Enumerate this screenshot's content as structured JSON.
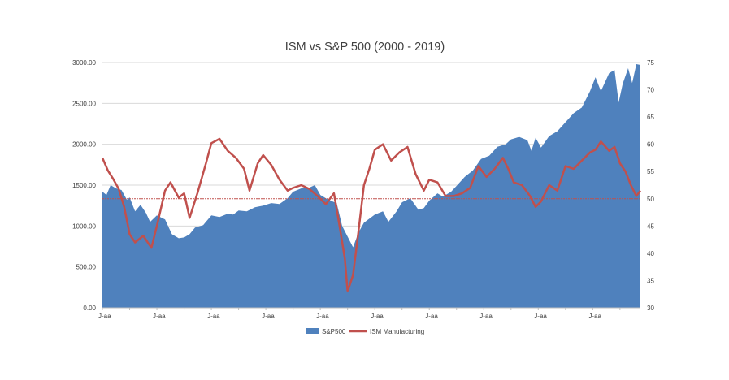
{
  "chart_data": {
    "type": "area",
    "title": "ISM vs S&P 500 (2000 - 2019)",
    "xlabel": "",
    "ylabel": "",
    "y2label": "",
    "grid": true,
    "legend_position": "bottom",
    "y_left": {
      "range": [
        0,
        3000
      ],
      "ticks": [
        "0.00",
        "500.00",
        "1000.00",
        "1500.00",
        "2000.00",
        "2500.00",
        "3000.00"
      ]
    },
    "y_right": {
      "range": [
        30,
        75
      ],
      "ticks": [
        "30",
        "35",
        "40",
        "45",
        "50",
        "55",
        "60",
        "65",
        "70",
        "75"
      ]
    },
    "x_range": [
      2000.0,
      2019.75
    ],
    "x_tick_label": "J-aa",
    "x_tick_years": [
      2000,
      2001,
      2002,
      2003,
      2004,
      2005,
      2006,
      2007,
      2008,
      2009,
      2010,
      2011,
      2012,
      2013,
      2014,
      2015,
      2016,
      2017,
      2018,
      2019
    ],
    "reference_line": {
      "axis": "right",
      "value": 50,
      "color": "#c0504d",
      "style": "dashed"
    },
    "series": [
      {
        "name": "S&P500",
        "type": "area",
        "axis": "left",
        "color": "#4f81bd",
        "x": [
          2000.0,
          2000.15,
          2000.3,
          2000.5,
          2000.7,
          2000.9,
          2001.0,
          2001.2,
          2001.4,
          2001.6,
          2001.75,
          2002.0,
          2002.3,
          2002.55,
          2002.8,
          2003.0,
          2003.2,
          2003.4,
          2003.7,
          2004.0,
          2004.3,
          2004.6,
          2004.8,
          2005.0,
          2005.3,
          2005.6,
          2005.9,
          2006.2,
          2006.5,
          2006.8,
          2007.0,
          2007.3,
          2007.6,
          2007.8,
          2008.0,
          2008.3,
          2008.6,
          2008.8,
          2009.0,
          2009.2,
          2009.4,
          2009.6,
          2009.8,
          2010.0,
          2010.3,
          2010.5,
          2010.8,
          2011.0,
          2011.3,
          2011.6,
          2011.8,
          2012.0,
          2012.3,
          2012.5,
          2012.8,
          2013.0,
          2013.3,
          2013.6,
          2013.9,
          2014.2,
          2014.5,
          2014.8,
          2015.0,
          2015.3,
          2015.6,
          2015.75,
          2015.9,
          2016.1,
          2016.4,
          2016.7,
          2017.0,
          2017.3,
          2017.6,
          2017.9,
          2018.1,
          2018.3,
          2018.6,
          2018.8,
          2018.95,
          2019.1,
          2019.3,
          2019.45,
          2019.6,
          2019.75
        ],
        "values": [
          1420,
          1380,
          1500,
          1460,
          1440,
          1320,
          1350,
          1180,
          1260,
          1160,
          1050,
          1130,
          1080,
          900,
          850,
          860,
          900,
          980,
          1010,
          1130,
          1110,
          1150,
          1140,
          1190,
          1180,
          1230,
          1250,
          1280,
          1270,
          1340,
          1420,
          1460,
          1470,
          1500,
          1380,
          1320,
          1280,
          1000,
          870,
          740,
          920,
          1040,
          1090,
          1140,
          1180,
          1050,
          1180,
          1290,
          1340,
          1200,
          1220,
          1310,
          1400,
          1360,
          1420,
          1490,
          1600,
          1680,
          1820,
          1860,
          1970,
          2000,
          2060,
          2090,
          2050,
          1920,
          2080,
          1960,
          2100,
          2160,
          2270,
          2380,
          2450,
          2650,
          2820,
          2650,
          2870,
          2910,
          2510,
          2740,
          2930,
          2750,
          2980,
          2970
        ]
      },
      {
        "name": "ISM Manufacturing",
        "type": "line",
        "axis": "right",
        "color": "#c0504d",
        "x": [
          2000.0,
          2000.2,
          2000.4,
          2000.6,
          2000.8,
          2001.0,
          2001.2,
          2001.5,
          2001.8,
          2002.0,
          2002.3,
          2002.5,
          2002.8,
          2003.0,
          2003.2,
          2003.5,
          2003.8,
          2004.0,
          2004.3,
          2004.6,
          2004.9,
          2005.2,
          2005.4,
          2005.7,
          2005.9,
          2006.2,
          2006.5,
          2006.8,
          2007.0,
          2007.3,
          2007.6,
          2007.9,
          2008.2,
          2008.5,
          2008.7,
          2008.9,
          2009.0,
          2009.2,
          2009.4,
          2009.6,
          2009.8,
          2010.0,
          2010.3,
          2010.6,
          2010.9,
          2011.2,
          2011.5,
          2011.8,
          2012.0,
          2012.3,
          2012.6,
          2012.9,
          2013.2,
          2013.5,
          2013.8,
          2014.1,
          2014.4,
          2014.7,
          2014.9,
          2015.1,
          2015.4,
          2015.7,
          2015.9,
          2016.1,
          2016.4,
          2016.7,
          2017.0,
          2017.3,
          2017.6,
          2017.9,
          2018.1,
          2018.3,
          2018.6,
          2018.8,
          2019.0,
          2019.2,
          2019.4,
          2019.6,
          2019.75
        ],
        "values": [
          57.5,
          55.2,
          53.6,
          51.8,
          48.5,
          43.5,
          42.0,
          43.2,
          41.0,
          45.0,
          51.5,
          53.0,
          50.2,
          51.0,
          46.5,
          51.2,
          56.5,
          60.2,
          61.0,
          58.8,
          57.5,
          55.5,
          51.5,
          56.5,
          58.0,
          56.2,
          53.5,
          51.5,
          52.0,
          52.5,
          51.8,
          50.5,
          49.0,
          51.0,
          45.2,
          39.0,
          33.0,
          36.0,
          44.0,
          52.5,
          55.5,
          59.0,
          60.0,
          57.0,
          58.5,
          59.5,
          54.5,
          51.5,
          53.5,
          53.0,
          50.5,
          50.5,
          51.0,
          52.0,
          56.0,
          54.0,
          55.5,
          57.5,
          55.5,
          53.0,
          52.5,
          50.5,
          48.5,
          49.5,
          52.5,
          51.5,
          56.0,
          55.5,
          57.0,
          58.5,
          59.0,
          60.5,
          58.8,
          59.5,
          56.5,
          55.0,
          52.5,
          50.5,
          51.5
        ]
      }
    ]
  }
}
